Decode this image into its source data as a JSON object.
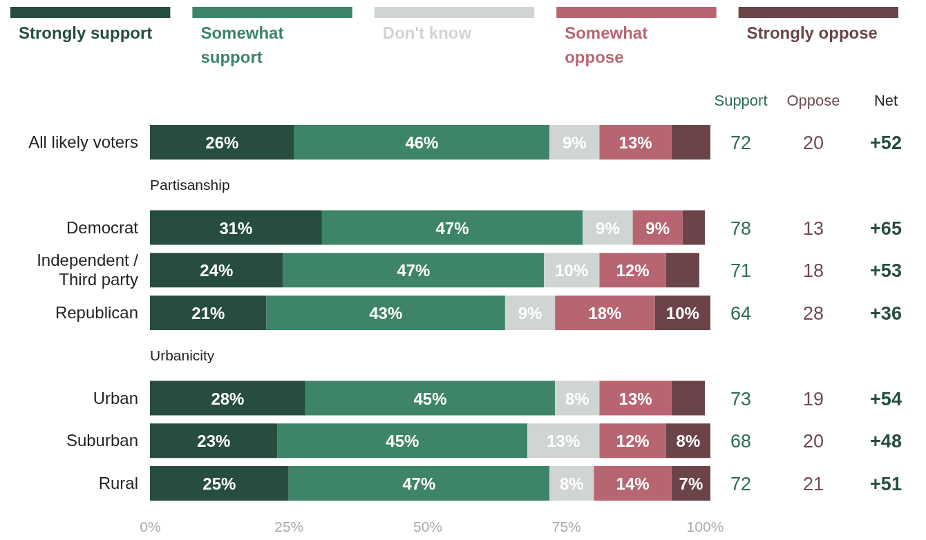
{
  "chart_data": [
    {
      "type": "bar",
      "orientation": "horizontal",
      "stacked": true,
      "legend": "top",
      "categories": [
        "All likely voters",
        null,
        "Democrat",
        "Independent / Third party",
        "Republican",
        null,
        "Urban",
        "Suburban",
        "Rural"
      ],
      "xlim": [
        0,
        101
      ],
      "xticks": [
        {
          "value": 0,
          "label": "0%"
        },
        {
          "value": 25,
          "label": "25%"
        },
        {
          "value": 50,
          "label": "50%"
        },
        {
          "value": 75,
          "label": "75%"
        },
        {
          "value": 100,
          "label": "100%"
        }
      ],
      "annotations": [
        "Partisanship",
        "Urbanicity"
      ],
      "series": [
        {
          "name": "Strongly support",
          "color": "#264d3f",
          "values": [
            26,
            null,
            31,
            24,
            21,
            null,
            28,
            23,
            25
          ],
          "value_labels": [
            "26%",
            null,
            "31%",
            "24%",
            "21%",
            null,
            "28%",
            "23%",
            "25%"
          ]
        },
        {
          "name": "Somewhat support",
          "color": "#3d8468",
          "values": [
            46,
            null,
            47,
            47,
            43,
            null,
            45,
            45,
            47
          ],
          "value_labels": [
            "46%",
            null,
            "47%",
            "47%",
            "43%",
            null,
            "45%",
            "45%",
            "47%"
          ]
        },
        {
          "name": "Don't know",
          "color": "#d0d5d3",
          "values": [
            9,
            null,
            9,
            10,
            9,
            null,
            8,
            13,
            8
          ],
          "value_labels": [
            "9%",
            null,
            "9%",
            "10%",
            "9%",
            null,
            "8%",
            "13%",
            "8%"
          ]
        },
        {
          "name": "Somewhat oppose",
          "color": "#b86572",
          "values": [
            13,
            null,
            9,
            12,
            18,
            null,
            13,
            12,
            14
          ],
          "value_labels": [
            "13%",
            null,
            "9%",
            "12%",
            "18%",
            null,
            "13%",
            "12%",
            "14%"
          ]
        },
        {
          "name": "Strongly oppose",
          "color": "#6a4449",
          "values": [
            7,
            null,
            4,
            6,
            10,
            null,
            6,
            8,
            7
          ],
          "value_labels": [
            null,
            null,
            null,
            null,
            "10%",
            null,
            null,
            "8%",
            "7%"
          ]
        }
      ]
    },
    {
      "type": "other",
      "categories": [
        "Support",
        "Oppose",
        "Net"
      ],
      "colors": [
        "#2e6b55",
        "#6e4a50",
        "#264d3f"
      ],
      "annotations": [
        "72",
        "20",
        "+52",
        "78",
        "13",
        "+65",
        "71",
        "18",
        "+53",
        "64",
        "28",
        "+36",
        "73",
        "19",
        "+54",
        "68",
        "20",
        "+48",
        "72",
        "21",
        "+51"
      ]
    }
  ]
}
